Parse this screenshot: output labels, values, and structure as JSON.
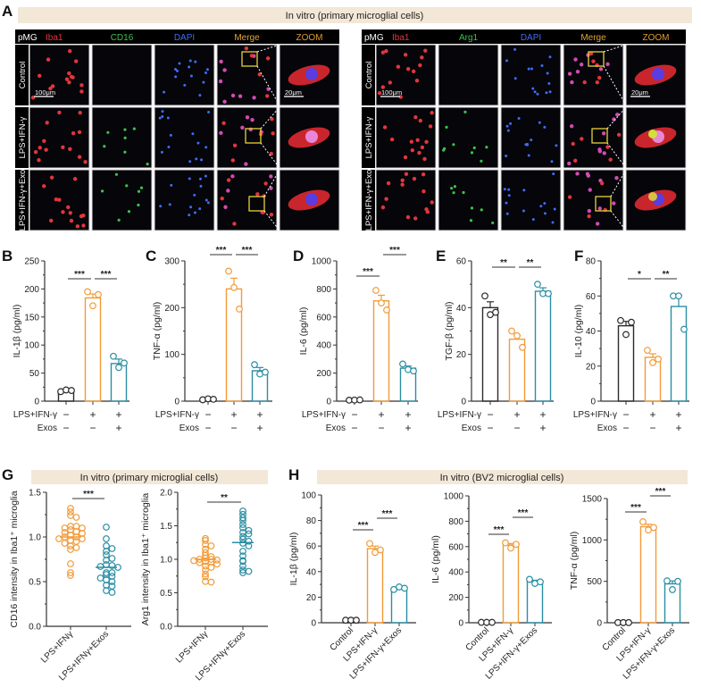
{
  "panel_labels": [
    "A",
    "B",
    "C",
    "D",
    "E",
    "F",
    "G",
    "H"
  ],
  "colors": {
    "control": "#2b2b2b",
    "lps": "#f29b38",
    "exos": "#2b8ea3",
    "banner": "#f3e7d7",
    "iba1": "#e2363c",
    "cd16": "#3cc24a",
    "dapi": "#3f6cf2",
    "merge": "#e0a43a",
    "zoom": "#e09a2a"
  },
  "panel_a": {
    "banner": "In vitro (primary microglial cells)",
    "blocks": [
      {
        "headers": [
          "pMG",
          "Iba1",
          "CD16",
          "DAPI",
          "Merge",
          "ZOOM"
        ],
        "rows": [
          "Control",
          "LPS+IFN-γ",
          "LPS+IFN-γ+Exo"
        ],
        "scale_main": "100μm",
        "scale_zoom": "20μm"
      },
      {
        "headers": [
          "pMG",
          "Iba1",
          "Arg1",
          "DAPI",
          "Merge",
          "ZOOM"
        ],
        "rows": [
          "Control",
          "LPS+IFN-γ",
          "LPS+IFN-γ+Exo"
        ],
        "scale_main": "100μm",
        "scale_zoom": "20μm"
      }
    ]
  },
  "panel_g": {
    "banner": "In vitro (primary microglial cells)"
  },
  "panel_h": {
    "banner": "In vitro (BV2 microglial cells)"
  },
  "chart_data": [
    {
      "id": "B",
      "type": "bar",
      "ylabel": "IL-1β (pg/ml)",
      "ylim": [
        0,
        250
      ],
      "yticks": [
        0,
        50,
        100,
        150,
        200,
        250
      ],
      "group_rows": [
        {
          "label": "LPS+IFN-γ",
          "signs": [
            "−",
            "+",
            "+"
          ]
        },
        {
          "label": "Exos",
          "signs": [
            "−",
            "−",
            "+"
          ]
        }
      ],
      "bars": [
        {
          "value": 18,
          "sem": 1,
          "points": [
            17,
            20,
            19
          ],
          "color": "control"
        },
        {
          "value": 184,
          "sem": 7,
          "points": [
            195,
            170,
            190
          ],
          "color": "lps"
        },
        {
          "value": 67,
          "sem": 8,
          "points": [
            80,
            60,
            68
          ],
          "color": "exos"
        }
      ],
      "sig": [
        {
          "from": 0,
          "to": 1,
          "label": "***"
        },
        {
          "from": 1,
          "to": 2,
          "label": "***"
        }
      ]
    },
    {
      "id": "C",
      "type": "bar",
      "ylabel": "TNF-α (pg/ml)",
      "ylim": [
        0,
        300
      ],
      "yticks": [
        0,
        100,
        200,
        300
      ],
      "group_rows": [
        {
          "label": "LPS+IFN-γ",
          "signs": [
            "−",
            "+",
            "+"
          ]
        },
        {
          "label": "Exos",
          "signs": [
            "−",
            "−",
            "+"
          ]
        }
      ],
      "bars": [
        {
          "value": 4,
          "sem": 1,
          "points": [
            3,
            5,
            4
          ],
          "color": "control"
        },
        {
          "value": 240,
          "sem": 23,
          "points": [
            278,
            243,
            197
          ],
          "color": "lps"
        },
        {
          "value": 65,
          "sem": 7,
          "points": [
            78,
            58,
            62
          ],
          "color": "exos"
        }
      ],
      "sig": [
        {
          "from": 0,
          "to": 1,
          "label": "***"
        },
        {
          "from": 1,
          "to": 2,
          "label": "***"
        }
      ]
    },
    {
      "id": "D",
      "type": "bar",
      "ylabel": "IL-6 (pg/ml)",
      "ylim": [
        0,
        1000
      ],
      "yticks": [
        0,
        200,
        400,
        600,
        800,
        1000
      ],
      "group_rows": [
        {
          "label": "LPS+IFN-γ",
          "signs": [
            "−",
            "+",
            "+"
          ]
        },
        {
          "label": "Exos",
          "signs": [
            "−",
            "−",
            "+"
          ]
        }
      ],
      "bars": [
        {
          "value": 8,
          "sem": 1,
          "points": [
            7,
            8,
            9
          ],
          "color": "control"
        },
        {
          "value": 715,
          "sem": 40,
          "points": [
            790,
            700,
            650
          ],
          "color": "lps"
        },
        {
          "value": 235,
          "sem": 15,
          "points": [
            265,
            225,
            215
          ],
          "color": "exos"
        }
      ],
      "sig": [
        {
          "from": 0,
          "to": 1,
          "label": "***"
        },
        {
          "from": 1,
          "to": 2,
          "label": "***"
        }
      ]
    },
    {
      "id": "E",
      "type": "bar",
      "ylabel": "TGF-β (pg/ml)",
      "ylim": [
        0,
        60
      ],
      "yticks": [
        0,
        20,
        40,
        60
      ],
      "group_rows": [
        {
          "label": "LPS+IFN-γ",
          "signs": [
            "−",
            "+",
            "+"
          ]
        },
        {
          "label": "Exos",
          "signs": [
            "−",
            "−",
            "+"
          ]
        }
      ],
      "bars": [
        {
          "value": 40,
          "sem": 2.5,
          "points": [
            45,
            37,
            38
          ],
          "color": "control"
        },
        {
          "value": 26.5,
          "sem": 1.8,
          "points": [
            30,
            28,
            23
          ],
          "color": "lps"
        },
        {
          "value": 47,
          "sem": 1.5,
          "points": [
            50,
            46,
            46
          ],
          "color": "exos"
        }
      ],
      "sig": [
        {
          "from": 0,
          "to": 1,
          "label": "**"
        },
        {
          "from": 1,
          "to": 2,
          "label": "**"
        }
      ]
    },
    {
      "id": "F",
      "type": "bar",
      "ylabel": "IL-10 (pg/ml)",
      "ylim": [
        0,
        80
      ],
      "yticks": [
        0,
        20,
        40,
        60,
        80
      ],
      "group_rows": [
        {
          "label": "LPS+IFN-γ",
          "signs": [
            "−",
            "+",
            "+"
          ]
        },
        {
          "label": "Exos",
          "signs": [
            "−",
            "−",
            "+"
          ]
        }
      ],
      "bars": [
        {
          "value": 43,
          "sem": 2.5,
          "points": [
            46,
            38,
            45
          ],
          "color": "control"
        },
        {
          "value": 25,
          "sem": 2,
          "points": [
            29,
            22,
            24
          ],
          "color": "lps"
        },
        {
          "value": 54,
          "sem": 6.5,
          "points": [
            60,
            60,
            41
          ],
          "color": "exos"
        }
      ],
      "sig": [
        {
          "from": 0,
          "to": 1,
          "label": "*"
        },
        {
          "from": 1,
          "to": 2,
          "label": "**"
        }
      ]
    },
    {
      "id": "G1",
      "type": "scatter",
      "ylabel": "CD16 intensity in Iba1⁺ microglia",
      "ylim": [
        0,
        1.5
      ],
      "yticks": [
        "0.0",
        "0.5",
        "1.0",
        "1.5"
      ],
      "categories": [
        "LPS+IFNγ",
        "LPS+IFNγ+Exos"
      ],
      "groups": [
        {
          "mean": 1.0,
          "color": "lps",
          "points": [
            1.32,
            1.28,
            1.24,
            1.22,
            1.12,
            1.12,
            1.1,
            1.1,
            1.08,
            1.06,
            1.05,
            1.04,
            1.02,
            1.0,
            1.0,
            0.98,
            0.98,
            0.96,
            0.95,
            0.93,
            0.9,
            0.88,
            0.86,
            0.7,
            0.6,
            0.57
          ]
        },
        {
          "mean": 0.66,
          "color": "exos",
          "points": [
            1.11,
            0.98,
            0.9,
            0.87,
            0.84,
            0.8,
            0.76,
            0.74,
            0.69,
            0.68,
            0.67,
            0.66,
            0.6,
            0.6,
            0.58,
            0.56,
            0.54,
            0.52,
            0.5,
            0.46,
            0.45,
            0.4,
            0.38
          ]
        }
      ],
      "sig": [
        {
          "from": 0,
          "to": 1,
          "label": "***"
        }
      ]
    },
    {
      "id": "G2",
      "type": "scatter",
      "ylabel": "Arg1 intensity in Iba1⁺ microglia",
      "ylim": [
        0,
        2.0
      ],
      "yticks": [
        "0.0",
        "0.5",
        "1.0",
        "1.5",
        "2.0"
      ],
      "categories": [
        "LPS+IFNγ",
        "LPS+IFNγ+Exos"
      ],
      "groups": [
        {
          "mean": 1.0,
          "color": "lps",
          "points": [
            1.31,
            1.28,
            1.22,
            1.2,
            1.15,
            1.1,
            1.06,
            1.04,
            1.02,
            1.0,
            1.0,
            0.99,
            0.98,
            0.97,
            0.96,
            0.95,
            0.93,
            0.9,
            0.88,
            0.84,
            0.78,
            0.74,
            0.67,
            0.66
          ]
        },
        {
          "mean": 1.25,
          "color": "exos",
          "points": [
            1.72,
            1.67,
            1.62,
            1.58,
            1.52,
            1.47,
            1.43,
            1.4,
            1.38,
            1.34,
            1.3,
            1.27,
            1.24,
            1.2,
            1.12,
            1.05,
            0.98,
            0.97,
            0.9,
            0.84,
            0.82,
            0.8
          ]
        }
      ],
      "sig": [
        {
          "from": 0,
          "to": 1,
          "label": "**"
        }
      ]
    },
    {
      "id": "H1",
      "type": "bar",
      "ylabel": "IL-1β (pg/ml)",
      "ylim": [
        0,
        100
      ],
      "yticks": [
        0,
        20,
        40,
        60,
        80,
        100
      ],
      "categories": [
        "Control",
        "LPS+IFN-γ",
        "LPS+IFN-γ+Exos"
      ],
      "bars": [
        {
          "value": 2,
          "sem": 0.3,
          "points": [
            2,
            2,
            2
          ],
          "color": "control"
        },
        {
          "value": 58,
          "sem": 2,
          "points": [
            62,
            55,
            57
          ],
          "color": "lps"
        },
        {
          "value": 27,
          "sem": 0.8,
          "points": [
            26,
            28,
            27
          ],
          "color": "exos"
        }
      ],
      "sig": [
        {
          "from": 0,
          "to": 1,
          "label": "***"
        },
        {
          "from": 1,
          "to": 2,
          "label": "***"
        }
      ]
    },
    {
      "id": "H2",
      "type": "bar",
      "ylabel": "IL-6 (pg/ml)",
      "ylim": [
        0,
        1000
      ],
      "yticks": [
        0,
        200,
        400,
        600,
        800,
        1000
      ],
      "categories": [
        "Control",
        "LPS+IFN-γ",
        "LPS+IFN-γ+Exos"
      ],
      "bars": [
        {
          "value": 3,
          "sem": 0.5,
          "points": [
            3,
            3,
            3
          ],
          "color": "control"
        },
        {
          "value": 612,
          "sem": 12,
          "points": [
            630,
            588,
            618
          ],
          "color": "lps"
        },
        {
          "value": 325,
          "sem": 10,
          "points": [
            342,
            310,
            322
          ],
          "color": "exos"
        }
      ],
      "sig": [
        {
          "from": 0,
          "to": 1,
          "label": "***"
        },
        {
          "from": 1,
          "to": 2,
          "label": "***"
        }
      ]
    },
    {
      "id": "H3",
      "type": "bar",
      "ylabel": "TNF-α (pg/ml)",
      "ylim": [
        0,
        1500
      ],
      "yticks": [
        0,
        500,
        1000,
        1500
      ],
      "categories": [
        "Control",
        "LPS+IFN-γ",
        "LPS+IFN-γ+Exos"
      ],
      "bars": [
        {
          "value": 2,
          "sem": 0.5,
          "points": [
            2,
            2,
            2
          ],
          "color": "control"
        },
        {
          "value": 1160,
          "sem": 30,
          "points": [
            1220,
            1120,
            1150
          ],
          "color": "lps"
        },
        {
          "value": 470,
          "sem": 35,
          "points": [
            505,
            400,
            500
          ],
          "color": "exos"
        }
      ],
      "sig": [
        {
          "from": 0,
          "to": 1,
          "label": "***"
        },
        {
          "from": 1,
          "to": 2,
          "label": "***"
        }
      ]
    }
  ]
}
